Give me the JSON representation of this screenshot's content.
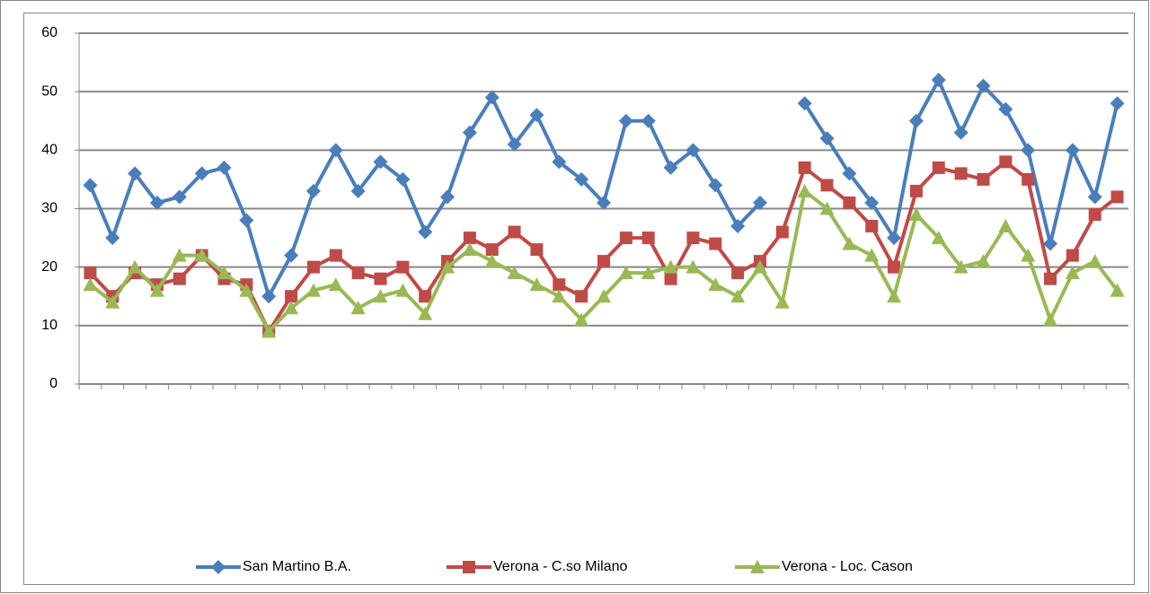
{
  "chart_data": {
    "type": "line",
    "categories": [
      null,
      null,
      null,
      null,
      null,
      null,
      null,
      null,
      null,
      null,
      null,
      null,
      null,
      null,
      null,
      null,
      null,
      null,
      null,
      null,
      null,
      null,
      null,
      null,
      null,
      null,
      null,
      null,
      null,
      null,
      null,
      null,
      null,
      null,
      null,
      null,
      null,
      null,
      null,
      null,
      null,
      null,
      null,
      null,
      null,
      null,
      null
    ],
    "series": [
      {
        "name": "San Martino B.A.",
        "color": "#4a7ebb",
        "marker": "diamond",
        "values": [
          34,
          25,
          36,
          31,
          32,
          36,
          37,
          28,
          15,
          22,
          33,
          40,
          33,
          38,
          35,
          26,
          32,
          43,
          49,
          41,
          46,
          38,
          35,
          31,
          45,
          45,
          37,
          40,
          34,
          27,
          31,
          null,
          48,
          42,
          36,
          31,
          25,
          45,
          52,
          43,
          51,
          47,
          40,
          24,
          40,
          32,
          48
        ]
      },
      {
        "name": "Verona - C.so Milano",
        "color": "#be4b48",
        "marker": "square",
        "values": [
          19,
          15,
          19,
          17,
          18,
          22,
          18,
          17,
          9,
          15,
          20,
          22,
          19,
          18,
          20,
          15,
          21,
          25,
          23,
          26,
          23,
          17,
          15,
          21,
          25,
          25,
          18,
          25,
          24,
          19,
          21,
          26,
          37,
          34,
          31,
          27,
          20,
          33,
          37,
          36,
          35,
          38,
          35,
          18,
          22,
          29,
          32
        ]
      },
      {
        "name": "Verona - Loc. Cason",
        "color": "#98b954",
        "marker": "triangle",
        "values": [
          17,
          14,
          20,
          16,
          22,
          22,
          19,
          16,
          9,
          13,
          16,
          17,
          13,
          15,
          16,
          12,
          20,
          23,
          21,
          19,
          17,
          15,
          11,
          15,
          19,
          19,
          20,
          20,
          17,
          15,
          20,
          14,
          33,
          30,
          24,
          22,
          15,
          29,
          25,
          20,
          21,
          27,
          22,
          11,
          19,
          21,
          16
        ]
      }
    ],
    "ylim": [
      0,
      60
    ],
    "yticks": [
      0,
      10,
      20,
      30,
      40,
      50,
      60
    ],
    "grid": true,
    "legend": "bottom"
  }
}
